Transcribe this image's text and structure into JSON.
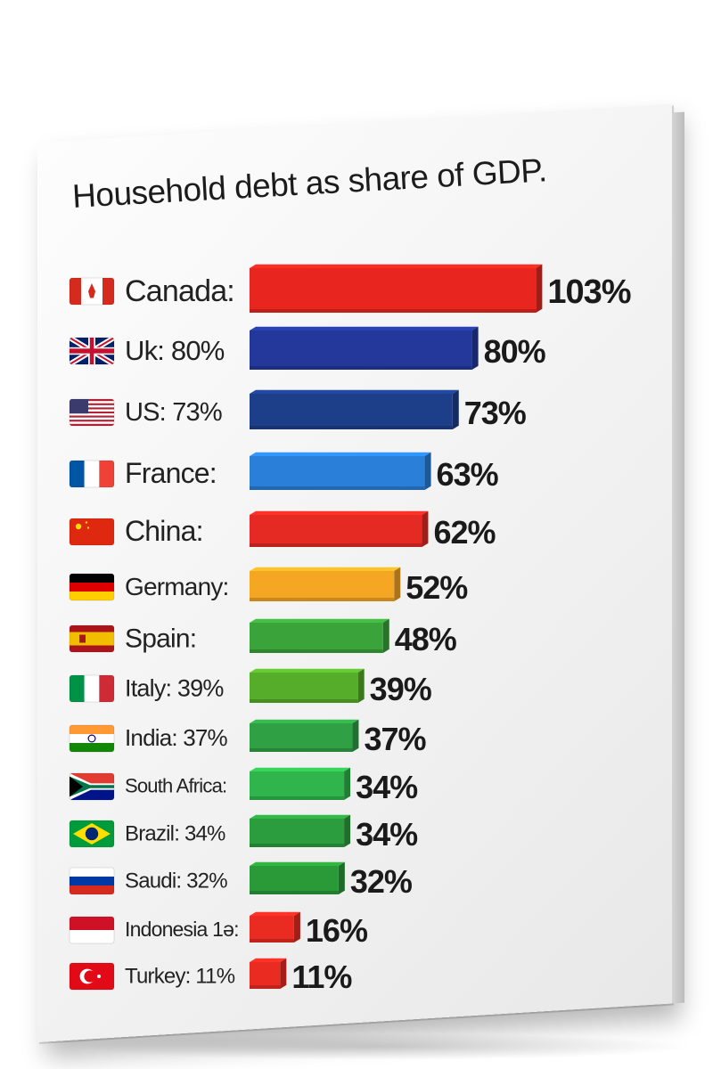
{
  "chart_data": {
    "type": "bar",
    "title": "Household debt as share of GDP.",
    "categories": [
      "Canada:",
      "Uk: 80%",
      "US: 73%",
      "France:",
      "China:",
      "Germany:",
      "Spain:",
      "Italy: 39%",
      "India: 37%",
      "South Africa:",
      "Brazil: 34%",
      "Saudi: 32%",
      "Indonesia 1ə:",
      "Turkey: 11%"
    ],
    "values": [
      103,
      80,
      73,
      63,
      62,
      52,
      48,
      39,
      37,
      34,
      34,
      32,
      16,
      11
    ],
    "value_labels": [
      "103%",
      "80%",
      "73%",
      "63%",
      "62%",
      "52%",
      "48%",
      "39%",
      "37%",
      "34%",
      "34%",
      "32%",
      "16%",
      "11%"
    ],
    "flags": [
      "canada-flag",
      "uk-flag",
      "us-flag",
      "france-flag",
      "china-flag",
      "germany-flag",
      "spain-flag",
      "italy-flag",
      "india-flag",
      "south-africa-flag",
      "brazil-flag",
      "russia-flag",
      "indonesia-flag",
      "turkey-flag"
    ],
    "colors": [
      "#e8261f",
      "#23389a",
      "#1d3f8a",
      "#2a7fd8",
      "#e52a23",
      "#f5a623",
      "#3aa33a",
      "#56ad2a",
      "#2fa043",
      "#2fb54c",
      "#2c9d3e",
      "#2a9a38",
      "#ea2b22",
      "#ea2b22"
    ],
    "xlabel": "",
    "ylabel": ""
  }
}
